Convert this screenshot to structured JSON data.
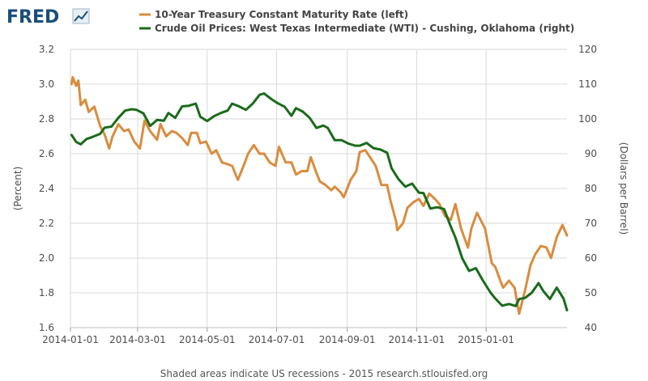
{
  "logo": {
    "text": "FRED"
  },
  "footer": "Shaded areas indicate US recessions - 2015 research.stlouisfed.org",
  "colors": {
    "treasury": "#d98c3e",
    "wti": "#1a6b1a",
    "grid": "#d9d9d9",
    "logo": "#1a4e7a"
  },
  "chart_data": {
    "type": "line",
    "title": "",
    "xlabel": "",
    "ylabel_left": "(Percent)",
    "ylabel_right": "(Dollars per Barrel)",
    "xlim": [
      "2014-01-01",
      "2015-03-13"
    ],
    "ylim_left": [
      1.6,
      3.2
    ],
    "ylim_right": [
      40,
      120
    ],
    "yticks_left": [
      "1.6",
      "1.8",
      "2.0",
      "2.2",
      "2.4",
      "2.6",
      "2.8",
      "3.0",
      "3.2"
    ],
    "yticks_right": [
      "40",
      "50",
      "60",
      "70",
      "80",
      "90",
      "100",
      "110",
      "120"
    ],
    "xticks": [
      "2014-01-01",
      "2014-03-01",
      "2014-05-01",
      "2014-07-01",
      "2014-09-01",
      "2014-11-01",
      "2015-01-01"
    ],
    "grid": true,
    "legend_position": "top",
    "series": [
      {
        "name": "10-Year Treasury Constant Maturity Rate (left)",
        "axis": "left",
        "color": "#d98c3e",
        "points": [
          [
            "2014-01-02",
            3.0
          ],
          [
            "2014-01-03",
            3.04
          ],
          [
            "2014-01-06",
            2.99
          ],
          [
            "2014-01-08",
            3.02
          ],
          [
            "2014-01-10",
            2.88
          ],
          [
            "2014-01-14",
            2.91
          ],
          [
            "2014-01-17",
            2.84
          ],
          [
            "2014-01-22",
            2.87
          ],
          [
            "2014-01-27",
            2.76
          ],
          [
            "2014-01-31",
            2.71
          ],
          [
            "2014-02-04",
            2.63
          ],
          [
            "2014-02-07",
            2.7
          ],
          [
            "2014-02-12",
            2.77
          ],
          [
            "2014-02-17",
            2.73
          ],
          [
            "2014-02-21",
            2.74
          ],
          [
            "2014-02-26",
            2.67
          ],
          [
            "2014-03-03",
            2.63
          ],
          [
            "2014-03-07",
            2.79
          ],
          [
            "2014-03-12",
            2.73
          ],
          [
            "2014-03-18",
            2.68
          ],
          [
            "2014-03-21",
            2.77
          ],
          [
            "2014-03-26",
            2.7
          ],
          [
            "2014-03-31",
            2.73
          ],
          [
            "2014-04-04",
            2.72
          ],
          [
            "2014-04-09",
            2.69
          ],
          [
            "2014-04-14",
            2.65
          ],
          [
            "2014-04-17",
            2.72
          ],
          [
            "2014-04-22",
            2.72
          ],
          [
            "2014-04-25",
            2.66
          ],
          [
            "2014-04-30",
            2.67
          ],
          [
            "2014-05-05",
            2.6
          ],
          [
            "2014-05-09",
            2.62
          ],
          [
            "2014-05-14",
            2.55
          ],
          [
            "2014-05-19",
            2.54
          ],
          [
            "2014-05-23",
            2.53
          ],
          [
            "2014-05-28",
            2.45
          ],
          [
            "2014-06-02",
            2.53
          ],
          [
            "2014-06-06",
            2.6
          ],
          [
            "2014-06-11",
            2.65
          ],
          [
            "2014-06-16",
            2.6
          ],
          [
            "2014-06-20",
            2.6
          ],
          [
            "2014-06-25",
            2.55
          ],
          [
            "2014-06-30",
            2.53
          ],
          [
            "2014-07-03",
            2.64
          ],
          [
            "2014-07-09",
            2.55
          ],
          [
            "2014-07-14",
            2.55
          ],
          [
            "2014-07-18",
            2.48
          ],
          [
            "2014-07-23",
            2.5
          ],
          [
            "2014-07-28",
            2.5
          ],
          [
            "2014-07-31",
            2.58
          ],
          [
            "2014-08-05",
            2.49
          ],
          [
            "2014-08-08",
            2.44
          ],
          [
            "2014-08-13",
            2.42
          ],
          [
            "2014-08-18",
            2.39
          ],
          [
            "2014-08-21",
            2.41
          ],
          [
            "2014-08-26",
            2.38
          ],
          [
            "2014-08-29",
            2.35
          ],
          [
            "2014-09-04",
            2.45
          ],
          [
            "2014-09-09",
            2.5
          ],
          [
            "2014-09-12",
            2.61
          ],
          [
            "2014-09-17",
            2.62
          ],
          [
            "2014-09-22",
            2.57
          ],
          [
            "2014-09-26",
            2.53
          ],
          [
            "2014-10-01",
            2.42
          ],
          [
            "2014-10-06",
            2.42
          ],
          [
            "2014-10-09",
            2.33
          ],
          [
            "2014-10-14",
            2.21
          ],
          [
            "2014-10-15",
            2.16
          ],
          [
            "2014-10-20",
            2.2
          ],
          [
            "2014-10-24",
            2.29
          ],
          [
            "2014-10-29",
            2.32
          ],
          [
            "2014-11-03",
            2.34
          ],
          [
            "2014-11-07",
            2.3
          ],
          [
            "2014-11-12",
            2.37
          ],
          [
            "2014-11-17",
            2.34
          ],
          [
            "2014-11-21",
            2.31
          ],
          [
            "2014-11-26",
            2.24
          ],
          [
            "2014-12-01",
            2.22
          ],
          [
            "2014-12-05",
            2.31
          ],
          [
            "2014-12-10",
            2.17
          ],
          [
            "2014-12-16",
            2.06
          ],
          [
            "2014-12-19",
            2.17
          ],
          [
            "2014-12-24",
            2.26
          ],
          [
            "2014-12-31",
            2.17
          ],
          [
            "2015-01-06",
            1.97
          ],
          [
            "2015-01-09",
            1.95
          ],
          [
            "2015-01-14",
            1.86
          ],
          [
            "2015-01-16",
            1.83
          ],
          [
            "2015-01-21",
            1.87
          ],
          [
            "2015-01-26",
            1.83
          ],
          [
            "2015-01-30",
            1.68
          ],
          [
            "2015-02-04",
            1.81
          ],
          [
            "2015-02-09",
            1.96
          ],
          [
            "2015-02-13",
            2.02
          ],
          [
            "2015-02-18",
            2.07
          ],
          [
            "2015-02-23",
            2.06
          ],
          [
            "2015-02-27",
            2.0
          ],
          [
            "2015-03-04",
            2.12
          ],
          [
            "2015-03-09",
            2.19
          ],
          [
            "2015-03-13",
            2.13
          ]
        ]
      },
      {
        "name": "Crude Oil Prices: West Texas Intermediate (WTI) - Cushing, Oklahoma (right)",
        "axis": "right",
        "color": "#1a6b1a",
        "points": [
          [
            "2014-01-02",
            95.4
          ],
          [
            "2014-01-06",
            93.4
          ],
          [
            "2014-01-10",
            92.7
          ],
          [
            "2014-01-15",
            94.2
          ],
          [
            "2014-01-21",
            94.9
          ],
          [
            "2014-01-27",
            95.7
          ],
          [
            "2014-01-31",
            97.5
          ],
          [
            "2014-02-06",
            97.8
          ],
          [
            "2014-02-12",
            100.3
          ],
          [
            "2014-02-18",
            102.4
          ],
          [
            "2014-02-24",
            102.8
          ],
          [
            "2014-02-28",
            102.6
          ],
          [
            "2014-03-06",
            101.6
          ],
          [
            "2014-03-12",
            98.0
          ],
          [
            "2014-03-18",
            99.7
          ],
          [
            "2014-03-24",
            99.5
          ],
          [
            "2014-03-28",
            101.7
          ],
          [
            "2014-04-03",
            100.3
          ],
          [
            "2014-04-09",
            103.6
          ],
          [
            "2014-04-15",
            103.8
          ],
          [
            "2014-04-21",
            104.4
          ],
          [
            "2014-04-25",
            100.6
          ],
          [
            "2014-05-01",
            99.4
          ],
          [
            "2014-05-07",
            100.8
          ],
          [
            "2014-05-13",
            101.7
          ],
          [
            "2014-05-19",
            102.4
          ],
          [
            "2014-05-23",
            104.4
          ],
          [
            "2014-05-29",
            103.6
          ],
          [
            "2014-06-04",
            102.6
          ],
          [
            "2014-06-10",
            104.4
          ],
          [
            "2014-06-16",
            106.9
          ],
          [
            "2014-06-20",
            107.3
          ],
          [
            "2014-06-26",
            105.8
          ],
          [
            "2014-07-02",
            104.5
          ],
          [
            "2014-07-08",
            103.5
          ],
          [
            "2014-07-14",
            100.9
          ],
          [
            "2014-07-18",
            103.1
          ],
          [
            "2014-07-24",
            102.1
          ],
          [
            "2014-07-30",
            100.3
          ],
          [
            "2014-08-05",
            97.4
          ],
          [
            "2014-08-11",
            98.1
          ],
          [
            "2014-08-15",
            97.4
          ],
          [
            "2014-08-21",
            93.9
          ],
          [
            "2014-08-27",
            93.9
          ],
          [
            "2014-09-02",
            92.9
          ],
          [
            "2014-09-08",
            92.3
          ],
          [
            "2014-09-12",
            92.3
          ],
          [
            "2014-09-18",
            93.1
          ],
          [
            "2014-09-24",
            91.6
          ],
          [
            "2014-09-30",
            91.2
          ],
          [
            "2014-10-06",
            90.3
          ],
          [
            "2014-10-10",
            85.8
          ],
          [
            "2014-10-16",
            82.7
          ],
          [
            "2014-10-22",
            80.5
          ],
          [
            "2014-10-28",
            81.4
          ],
          [
            "2014-11-03",
            78.8
          ],
          [
            "2014-11-07",
            78.7
          ],
          [
            "2014-11-13",
            74.2
          ],
          [
            "2014-11-19",
            74.6
          ],
          [
            "2014-11-25",
            74.1
          ],
          [
            "2014-12-01",
            69.0
          ],
          [
            "2014-12-05",
            65.9
          ],
          [
            "2014-12-11",
            59.9
          ],
          [
            "2014-12-17",
            56.3
          ],
          [
            "2014-12-23",
            57.1
          ],
          [
            "2014-12-29",
            53.6
          ],
          [
            "2015-01-05",
            50.0
          ],
          [
            "2015-01-09",
            48.4
          ],
          [
            "2015-01-15",
            46.3
          ],
          [
            "2015-01-21",
            46.8
          ],
          [
            "2015-01-27",
            46.2
          ],
          [
            "2015-01-30",
            48.2
          ],
          [
            "2015-02-04",
            48.5
          ],
          [
            "2015-02-10",
            50.0
          ],
          [
            "2015-02-16",
            52.8
          ],
          [
            "2015-02-20",
            50.6
          ],
          [
            "2015-02-26",
            48.2
          ],
          [
            "2015-03-04",
            51.5
          ],
          [
            "2015-03-10",
            48.3
          ],
          [
            "2015-03-13",
            45.0
          ]
        ]
      }
    ]
  }
}
